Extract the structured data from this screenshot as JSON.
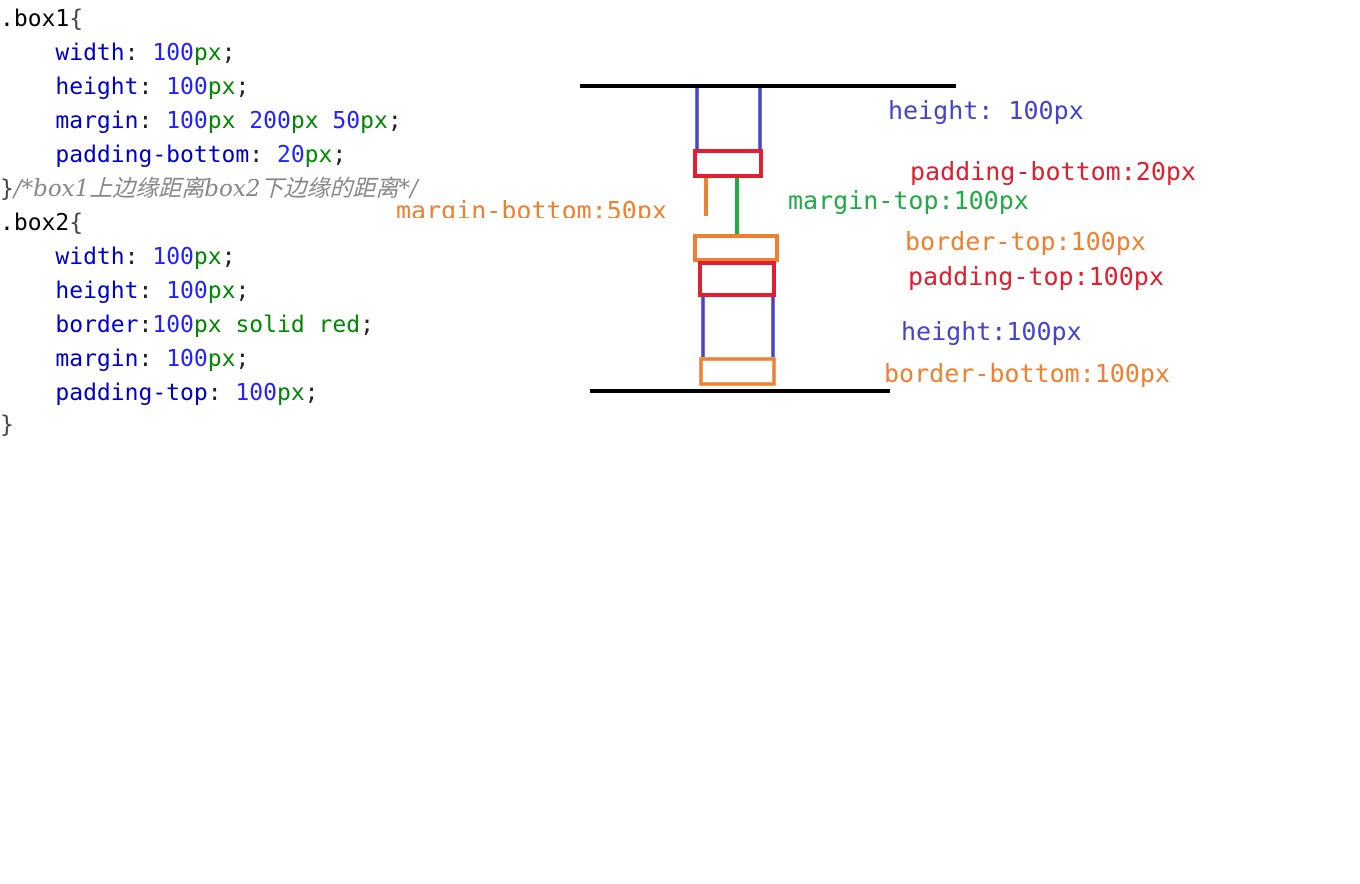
{
  "code": {
    "box1_selector": ".box1",
    "brace_open": "{",
    "brace_close": "}",
    "box1_width_prop": "width",
    "box1_width_val": "100",
    "unit_px": "px",
    "box1_height_prop": "height",
    "box1_height_val": "100",
    "box1_margin_prop": "margin",
    "box1_margin_val1": "100",
    "box1_margin_val2": "200",
    "box1_margin_val3": "50",
    "box1_padding_prop": "padding-bottom",
    "box1_padding_val": "20",
    "comment": "/*box1上边缘距离box2下边缘的距离*/",
    "box2_selector": ".box2",
    "box2_width_prop": "width",
    "box2_width_val": "100",
    "box2_height_prop": "height",
    "box2_height_val": "100",
    "box2_border_prop": "border",
    "box2_border_val": "100",
    "box2_border_style": "solid red",
    "box2_margin_prop": "margin",
    "box2_margin_val": "100",
    "box2_padding_prop": "padding-top",
    "box2_padding_val": "100"
  },
  "diagram": {
    "labels": {
      "height_top": "height: 100px",
      "padding_bottom": "padding-bottom:20px",
      "margin_top": "margin-top:100px",
      "margin_bottom": "margin-bottom:50px",
      "border_top": "border-top:100px",
      "padding_top": "padding-top:100px",
      "height_bottom": "height:100px",
      "border_bottom": "border-bottom:100px"
    },
    "colors": {
      "blue": "#4444cc",
      "red": "#e02030",
      "green": "#22aa44",
      "orange": "#f08030",
      "black": "#000000"
    }
  }
}
